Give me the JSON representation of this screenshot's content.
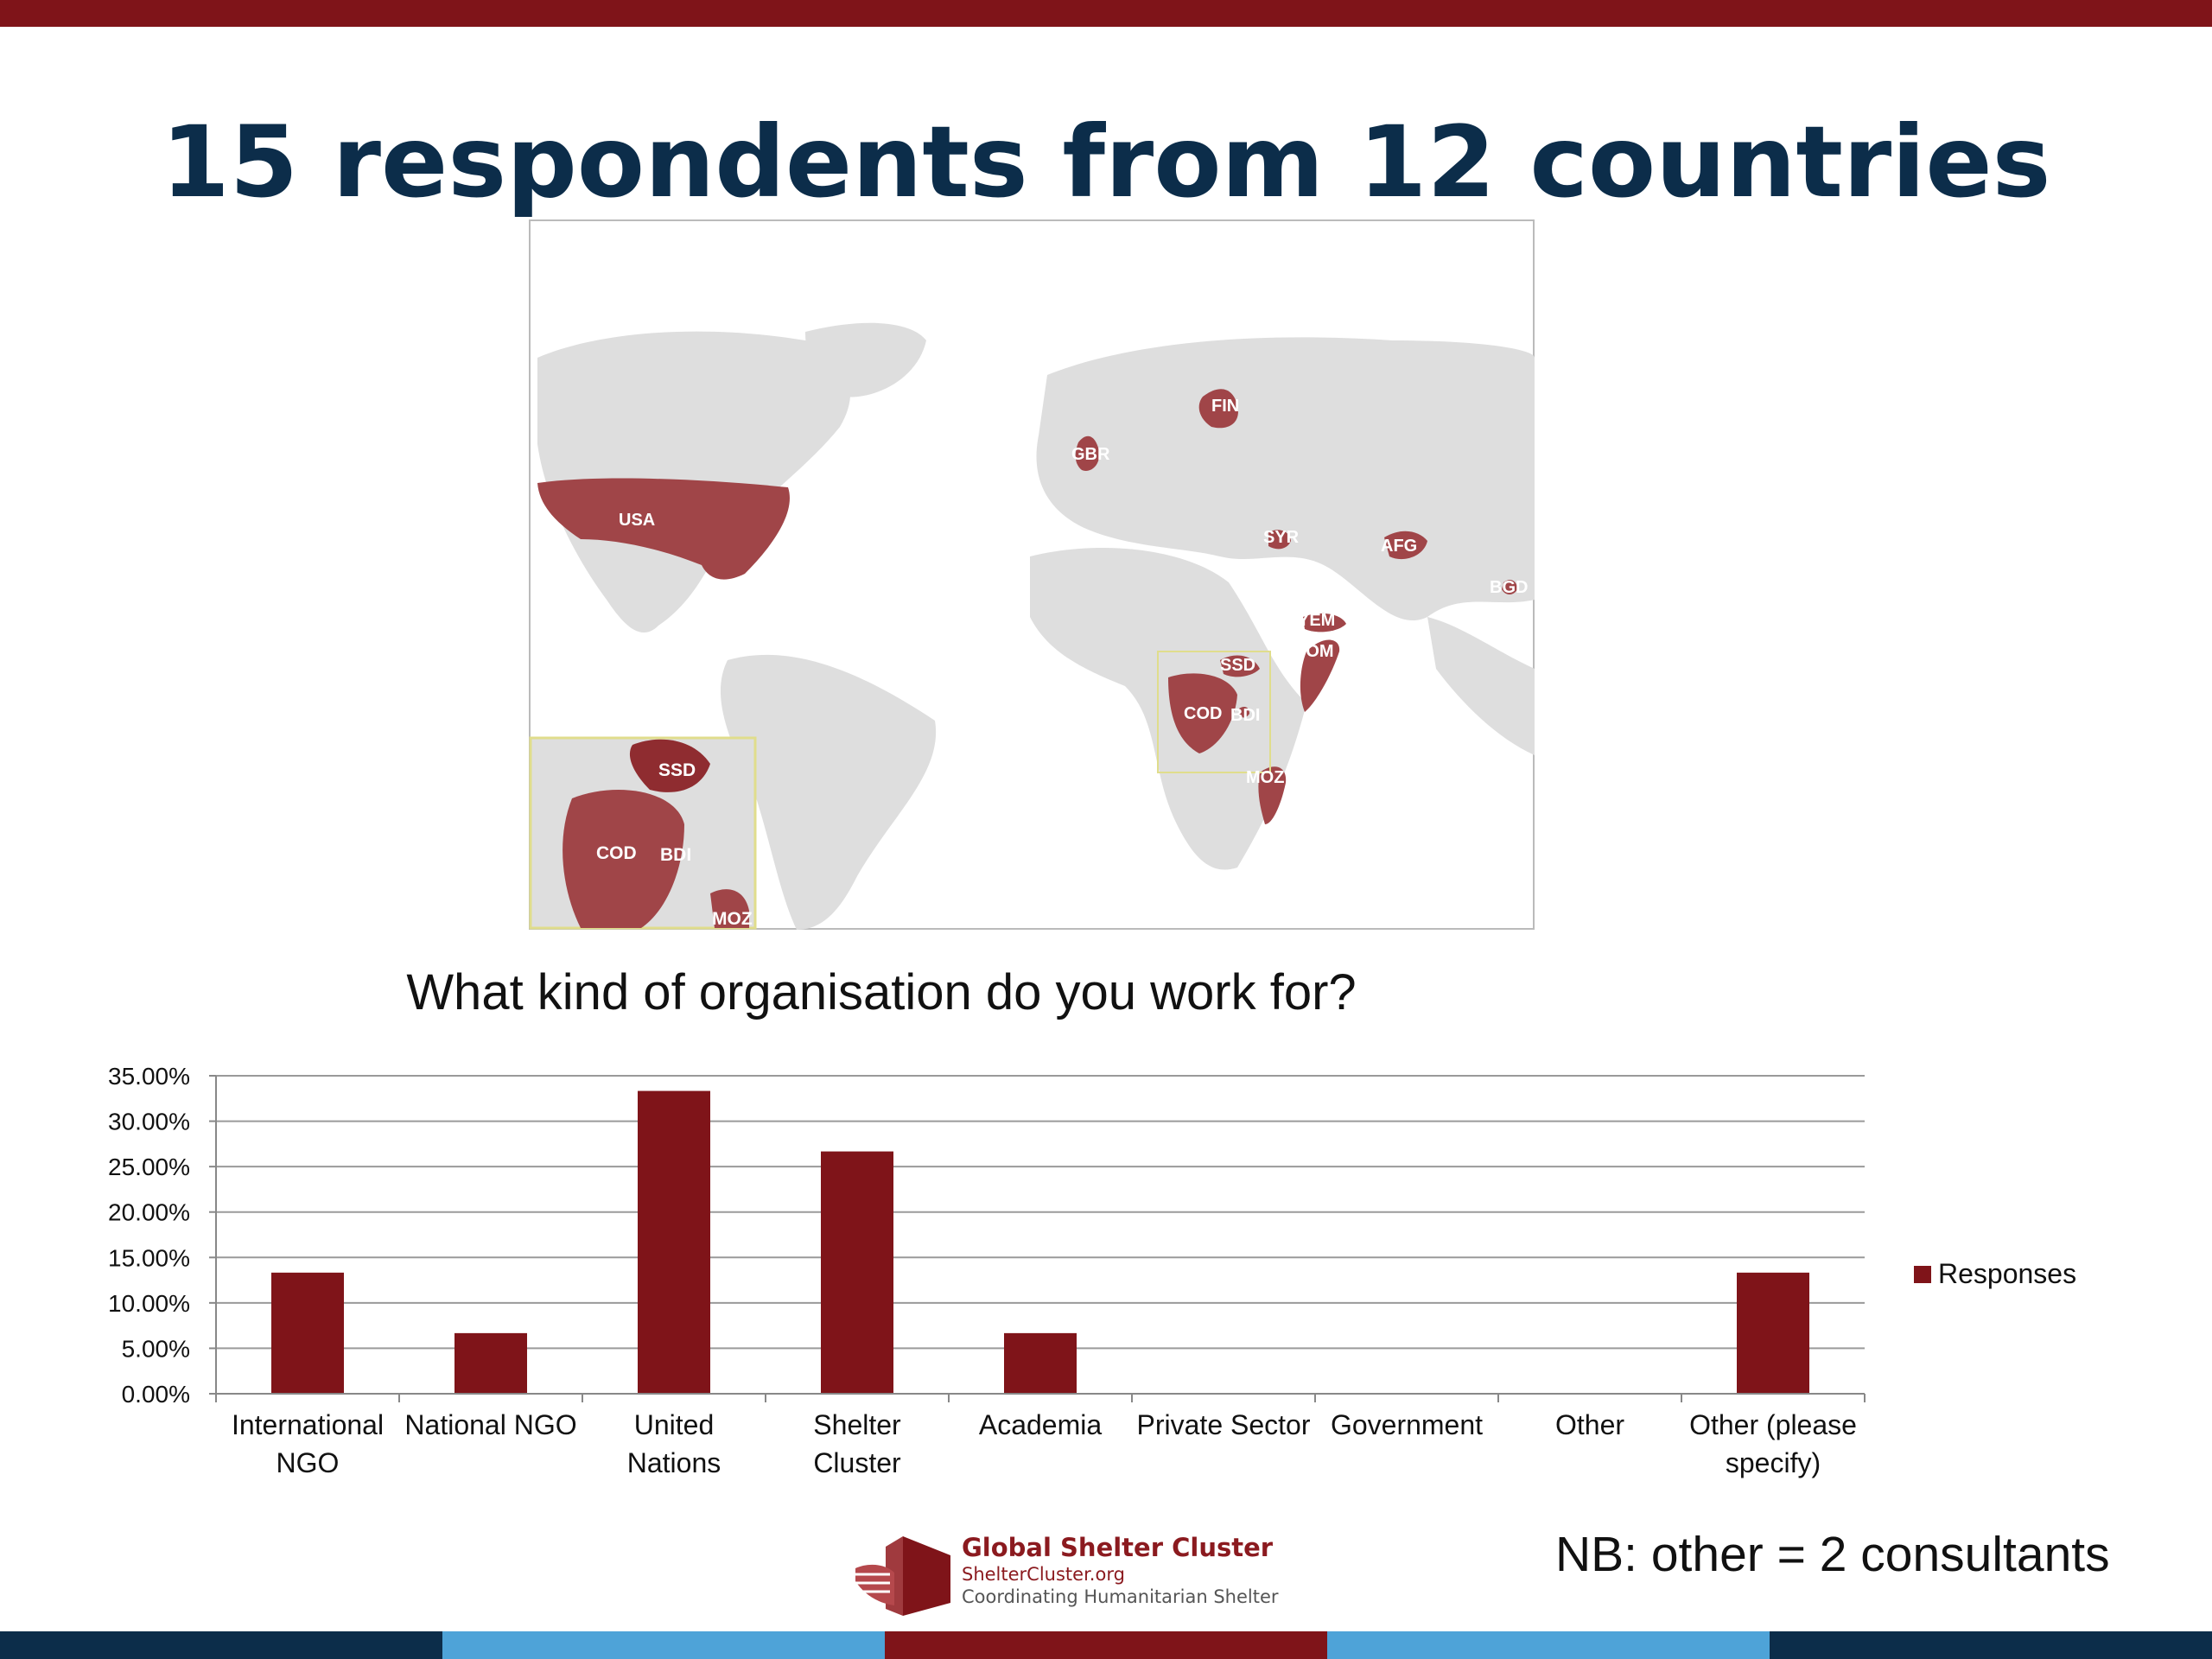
{
  "slide": {
    "title": "15 respondents from 12 countries",
    "note": "NB: other = 2 consultants",
    "colors": {
      "accent": "#7f1419",
      "title": "#0c2d4a",
      "land": "#dedede",
      "highlight": "#a04548",
      "bottom_bar": [
        "#0c2d4a",
        "#4ea3d8",
        "#7f1419",
        "#4ea3d8",
        "#0c2d4a"
      ]
    }
  },
  "map": {
    "country_labels": [
      "USA",
      "GBR",
      "FIN",
      "SYR",
      "AFG",
      "BGD",
      "YEM",
      "SOM",
      "SSD",
      "COD",
      "BDI",
      "MOZ"
    ],
    "inset_labels": [
      "SSD",
      "COD",
      "BDI",
      "MOZ"
    ]
  },
  "logo": {
    "name": "Global Shelter Cluster",
    "site": "ShelterCluster.org",
    "tagline": "Coordinating Humanitarian Shelter",
    "icon": "hand-house-icon"
  },
  "chart_data": {
    "type": "bar",
    "title": "What kind of organisation do you work for?",
    "categories": [
      "International NGO",
      "National NGO",
      "United Nations",
      "Shelter Cluster",
      "Academia",
      "Private Sector",
      "Government",
      "Other",
      "Other (please specify)"
    ],
    "series": [
      {
        "name": "Responses",
        "values": [
          13.33,
          6.67,
          33.33,
          26.67,
          6.67,
          0,
          0,
          0,
          13.33
        ],
        "color": "#7f1419"
      }
    ],
    "yticks": [
      "0.00%",
      "5.00%",
      "10.00%",
      "15.00%",
      "20.00%",
      "25.00%",
      "30.00%",
      "35.00%"
    ],
    "ylim": [
      0,
      35
    ],
    "grid": true,
    "legend": "right"
  }
}
